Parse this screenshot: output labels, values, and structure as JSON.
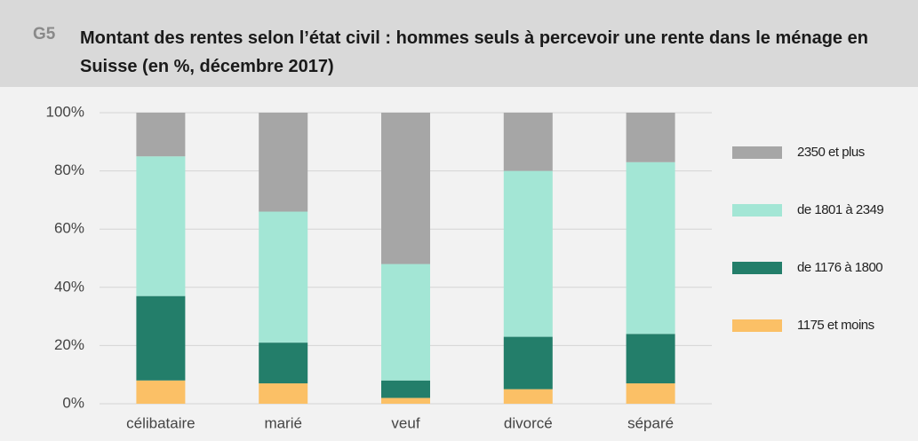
{
  "chart_data": {
    "type": "stacked_bar",
    "label": "G5",
    "title": "Montant des rentes selon l’état civil : hommes seuls à percevoir une rente dans le ménage en Suisse (en %, décembre 2017)",
    "categories": [
      "célibataire",
      "marié",
      "veuf",
      "divorcé",
      "séparé"
    ],
    "series": [
      {
        "name": "1175 et moins",
        "color": "#fbc066",
        "values": [
          8,
          7,
          2,
          5,
          7
        ]
      },
      {
        "name": "de 1176 à 1800",
        "color": "#237e6a",
        "values": [
          29,
          14,
          6,
          18,
          17
        ]
      },
      {
        "name": "de 1801 à 2349",
        "color": "#a3e6d5",
        "values": [
          48,
          45,
          40,
          57,
          59
        ]
      },
      {
        "name": "2350 et plus",
        "color": "#a6a6a6",
        "values": [
          15,
          34,
          52,
          20,
          17
        ]
      }
    ],
    "ylim": [
      0,
      100
    ],
    "yticks": [
      {
        "value": 0,
        "label": "0%"
      },
      {
        "value": 20,
        "label": "20%"
      },
      {
        "value": 40,
        "label": "40%"
      },
      {
        "value": 60,
        "label": "60%"
      },
      {
        "value": 80,
        "label": "80%"
      },
      {
        "value": 100,
        "label": "100%"
      }
    ],
    "grid": true,
    "legend": "right"
  }
}
